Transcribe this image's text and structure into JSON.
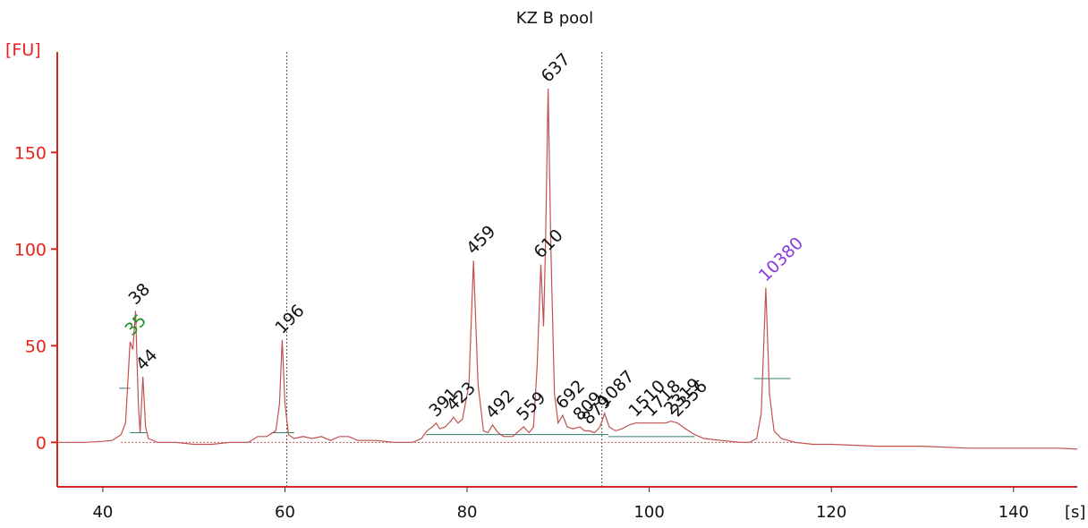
{
  "chart_data": {
    "type": "line",
    "title": "KZ B pool",
    "ylabel": "[FU]",
    "xlabel": "[s]",
    "xlim": [
      35,
      147
    ],
    "ylim": [
      -23,
      202
    ],
    "x_ticks": [
      "40",
      "60",
      "80",
      "100",
      "120",
      "140"
    ],
    "x_tick_values": [
      40,
      60,
      80,
      100,
      120,
      140
    ],
    "y_ticks": [
      "0",
      "50",
      "100",
      "150"
    ],
    "y_tick_values": [
      0,
      50,
      100,
      150
    ],
    "markers_vertical": [
      60.2,
      94.8
    ],
    "colors": {
      "trace": "#c0514f",
      "axis": "#e8221b",
      "baseline": "#2e7d6b",
      "lower_marker": "#1f8f1f",
      "upper_marker": "#8a3be0",
      "label": "#111111"
    },
    "peaks": [
      {
        "label": "35",
        "x": 43.2,
        "y": 52,
        "role": "lower_marker"
      },
      {
        "label": "38",
        "x": 43.6,
        "y": 68
      },
      {
        "label": "44",
        "x": 44.4,
        "y": 34
      },
      {
        "label": "196",
        "x": 59.7,
        "y": 53
      },
      {
        "label": "391",
        "x": 76.6,
        "y": 10
      },
      {
        "label": "423",
        "x": 78.5,
        "y": 13
      },
      {
        "label": "459",
        "x": 80.7,
        "y": 94
      },
      {
        "label": "492",
        "x": 82.8,
        "y": 9
      },
      {
        "label": "559",
        "x": 86.2,
        "y": 8
      },
      {
        "label": "610",
        "x": 88.1,
        "y": 92
      },
      {
        "label": "637",
        "x": 88.9,
        "y": 183
      },
      {
        "label": "692",
        "x": 90.5,
        "y": 14
      },
      {
        "label": "809",
        "x": 92.4,
        "y": 8
      },
      {
        "label": "879",
        "x": 93.4,
        "y": 6
      },
      {
        "label": "1087",
        "x": 95.1,
        "y": 15
      },
      {
        "label": "1510",
        "x": 98.5,
        "y": 10
      },
      {
        "label": "1718",
        "x": 100.2,
        "y": 10
      },
      {
        "label": "2319",
        "x": 102.4,
        "y": 11
      },
      {
        "label": "2356",
        "x": 103.1,
        "y": 10
      },
      {
        "label": "10380",
        "x": 112.8,
        "y": 80,
        "role": "upper_marker"
      }
    ],
    "trace": [
      [
        35,
        0
      ],
      [
        38,
        0
      ],
      [
        40,
        0.5
      ],
      [
        41,
        1
      ],
      [
        42,
        4
      ],
      [
        42.5,
        10
      ],
      [
        43.0,
        52
      ],
      [
        43.3,
        48
      ],
      [
        43.6,
        68
      ],
      [
        43.9,
        20
      ],
      [
        44.1,
        5
      ],
      [
        44.4,
        34
      ],
      [
        44.7,
        8
      ],
      [
        45,
        2
      ],
      [
        46,
        0
      ],
      [
        48,
        0
      ],
      [
        50,
        -1
      ],
      [
        52,
        -1
      ],
      [
        54,
        0
      ],
      [
        56,
        0
      ],
      [
        57,
        3
      ],
      [
        58,
        3
      ],
      [
        59,
        6
      ],
      [
        59.4,
        20
      ],
      [
        59.7,
        53
      ],
      [
        60.0,
        20
      ],
      [
        60.4,
        4
      ],
      [
        61,
        2
      ],
      [
        62,
        3
      ],
      [
        63,
        2
      ],
      [
        64,
        3
      ],
      [
        65,
        1
      ],
      [
        66,
        3
      ],
      [
        67,
        3
      ],
      [
        68,
        1
      ],
      [
        70,
        1
      ],
      [
        72,
        0
      ],
      [
        74,
        0
      ],
      [
        75,
        2
      ],
      [
        75.6,
        6
      ],
      [
        76.2,
        8
      ],
      [
        76.6,
        10
      ],
      [
        77,
        7
      ],
      [
        77.6,
        8
      ],
      [
        78.2,
        11
      ],
      [
        78.5,
        13
      ],
      [
        79,
        10
      ],
      [
        79.5,
        12
      ],
      [
        80.2,
        30
      ],
      [
        80.7,
        94
      ],
      [
        81.2,
        30
      ],
      [
        81.8,
        6
      ],
      [
        82.3,
        5
      ],
      [
        82.8,
        9
      ],
      [
        83.4,
        5
      ],
      [
        84,
        3
      ],
      [
        85,
        3
      ],
      [
        85.7,
        6
      ],
      [
        86.2,
        8
      ],
      [
        86.8,
        5
      ],
      [
        87.3,
        8
      ],
      [
        87.7,
        40
      ],
      [
        88.1,
        92
      ],
      [
        88.4,
        60
      ],
      [
        88.6,
        100
      ],
      [
        88.9,
        183
      ],
      [
        89.2,
        100
      ],
      [
        89.6,
        25
      ],
      [
        90,
        10
      ],
      [
        90.5,
        14
      ],
      [
        91,
        8
      ],
      [
        91.6,
        7
      ],
      [
        92.4,
        8
      ],
      [
        92.9,
        6
      ],
      [
        93.4,
        6
      ],
      [
        94,
        5
      ],
      [
        94.6,
        8
      ],
      [
        95.1,
        15
      ],
      [
        95.6,
        8
      ],
      [
        96.3,
        6
      ],
      [
        97,
        7
      ],
      [
        97.8,
        9
      ],
      [
        98.5,
        10
      ],
      [
        99.2,
        10
      ],
      [
        100.2,
        10
      ],
      [
        101,
        10
      ],
      [
        101.8,
        10
      ],
      [
        102.4,
        11
      ],
      [
        103.1,
        10
      ],
      [
        104,
        7
      ],
      [
        105,
        4
      ],
      [
        106,
        2
      ],
      [
        108,
        1
      ],
      [
        110,
        0
      ],
      [
        111,
        0
      ],
      [
        111.8,
        2
      ],
      [
        112.3,
        15
      ],
      [
        112.8,
        80
      ],
      [
        113.2,
        25
      ],
      [
        113.7,
        6
      ],
      [
        114.5,
        2
      ],
      [
        116,
        0
      ],
      [
        118,
        -1
      ],
      [
        120,
        -1
      ],
      [
        125,
        -2
      ],
      [
        130,
        -2
      ],
      [
        135,
        -3
      ],
      [
        140,
        -3
      ],
      [
        145,
        -3
      ],
      [
        147,
        -3.5
      ]
    ],
    "baselines": [
      {
        "x1": 43.0,
        "x2": 44.8,
        "y": 5
      },
      {
        "x1": 41.8,
        "x2": 43.0,
        "y": 28
      },
      {
        "x1": 58.5,
        "x2": 61.0,
        "y": 5
      },
      {
        "x1": 75.5,
        "x2": 95.5,
        "y": 4
      },
      {
        "x1": 95.5,
        "x2": 105.0,
        "y": 3
      },
      {
        "x1": 111.5,
        "x2": 115.5,
        "y": 33
      }
    ]
  }
}
